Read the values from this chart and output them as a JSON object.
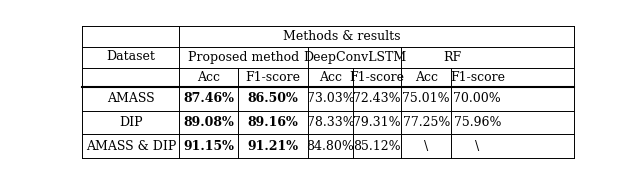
{
  "col_headers_l2": [
    "Proposed method",
    "DeepConvLSTM",
    "RF"
  ],
  "col_headers_l3": [
    "Acc",
    "F1-score",
    "Acc",
    "F1-score",
    "Acc",
    "F1-score"
  ],
  "row_labels": [
    "AMASS",
    "DIP",
    "AMASS & DIP"
  ],
  "rows": [
    [
      "87.46%",
      "86.50%",
      "73.03%",
      "72.43%",
      "75.01%",
      "70.00%"
    ],
    [
      "89.08%",
      "89.16%",
      "78.33%",
      "79.31%",
      "77.25%",
      "75.96%"
    ],
    [
      "91.15%",
      "91.21%",
      "84.80%",
      "85.12%",
      "\\",
      "\\"
    ]
  ],
  "bold_cols": [
    0,
    1
  ],
  "bg_color": "#ffffff",
  "text_color": "#000000",
  "font_size": 9.0
}
